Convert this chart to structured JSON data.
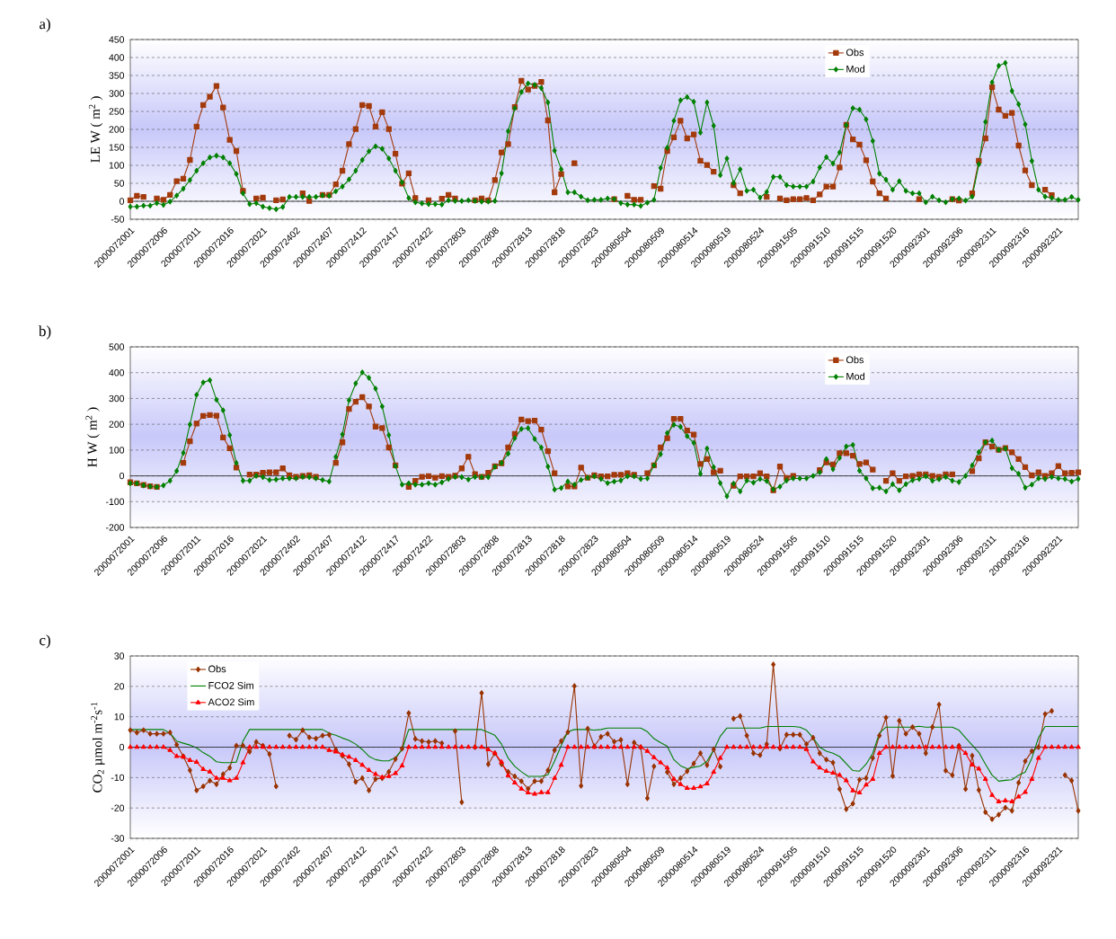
{
  "chart_data": [
    {
      "type": "line",
      "title": "a)",
      "ylabel": "LE  W ( m$^{2}$ )",
      "categories": [
        "2000072001",
        null,
        null,
        null,
        null,
        "2000072006",
        null,
        null,
        null,
        null,
        "2000072011",
        null,
        null,
        null,
        null,
        "2000072016",
        null,
        null,
        null,
        null,
        "2000072021",
        null,
        null,
        null,
        null,
        "2000072402",
        null,
        null,
        null,
        null,
        "2000072407",
        null,
        null,
        null,
        null,
        "2000072412",
        null,
        null,
        null,
        null,
        "2000072417",
        null,
        null,
        null,
        null,
        "2000072422",
        null,
        null,
        null,
        null,
        "2000072803",
        null,
        null,
        null,
        null,
        "2000072808",
        null,
        null,
        null,
        null,
        "2000072813",
        null,
        null,
        null,
        null,
        "2000072818",
        null,
        null,
        null,
        null,
        "2000072823",
        null,
        null,
        null,
        null,
        "2000080504",
        null,
        null,
        null,
        null,
        "2000080509",
        null,
        null,
        null,
        null,
        "2000080514",
        null,
        null,
        null,
        null,
        "2000080519",
        null,
        null,
        null,
        null,
        "2000080524",
        null,
        null,
        null,
        null,
        "2000091505",
        null,
        null,
        null,
        null,
        "2000091510",
        null,
        null,
        null,
        null,
        "2000091515",
        null,
        null,
        null,
        null,
        "2000091520",
        null,
        null,
        null,
        null,
        "2000092301",
        null,
        null,
        null,
        null,
        "2000092306",
        null,
        null,
        null,
        null,
        "2000092311",
        null,
        null,
        null,
        null,
        "2000092316",
        null,
        null,
        null,
        null,
        "2000092321",
        null,
        null,
        null
      ],
      "ylim": [
        -50,
        450
      ],
      "yticks": [
        -50,
        0,
        50,
        100,
        150,
        200,
        250,
        300,
        350,
        400,
        450
      ],
      "grid": "y",
      "legend": "top right",
      "series": [
        {
          "name": "Obs",
          "color": "#a33a0b",
          "marker": "square",
          "values": [
            3,
            15,
            12,
            null,
            8,
            4,
            18,
            56,
            63,
            115,
            208,
            268,
            291,
            321,
            261,
            171,
            140,
            29,
            null,
            8,
            10,
            null,
            3,
            5,
            null,
            null,
            22,
            1,
            null,
            18,
            18,
            47,
            85,
            159,
            201,
            268,
            265,
            208,
            248,
            201,
            132,
            49,
            78,
            9,
            null,
            3,
            null,
            7,
            18,
            8,
            null,
            null,
            3,
            8,
            3,
            59,
            136,
            159,
            262,
            335,
            311,
            321,
            332,
            225,
            25,
            76,
            null,
            106,
            null,
            null,
            null,
            null,
            null,
            6,
            null,
            15,
            4,
            4,
            null,
            42,
            35,
            140,
            178,
            224,
            175,
            186,
            113,
            101,
            82,
            null,
            null,
            45,
            22,
            null,
            null,
            null,
            12,
            null,
            8,
            3,
            6,
            6,
            9,
            3,
            19,
            41,
            41,
            94,
            213,
            172,
            158,
            114,
            55,
            22,
            8,
            null,
            null,
            null,
            null,
            6,
            null,
            null,
            null,
            null,
            6,
            2,
            null,
            22,
            113,
            175,
            318,
            255,
            238,
            246,
            155,
            86,
            45,
            null,
            32,
            17,
            null,
            null,
            null,
            null
          ]
        },
        {
          "name": "Mod",
          "color": "#008000",
          "marker": "diamond",
          "values": [
            -15,
            -15,
            -12,
            -12,
            -5,
            -10,
            -1,
            16,
            35,
            59,
            85,
            106,
            122,
            127,
            122,
            106,
            76,
            22,
            -8,
            -5,
            -15,
            -19,
            -22,
            -16,
            12,
            12,
            12,
            12,
            12,
            16,
            15,
            28,
            41,
            61,
            85,
            115,
            139,
            153,
            146,
            119,
            85,
            53,
            9,
            -3,
            -6,
            -8,
            -8,
            -9,
            3,
            1,
            1,
            3,
            1,
            -1,
            -1,
            1,
            78,
            195,
            259,
            304,
            328,
            324,
            315,
            275,
            141,
            89,
            25,
            25,
            13,
            3,
            4,
            4,
            8,
            6,
            -5,
            -9,
            -9,
            -13,
            -4,
            4,
            93,
            149,
            224,
            281,
            290,
            277,
            191,
            275,
            210,
            73,
            119,
            51,
            89,
            29,
            32,
            10,
            26,
            68,
            68,
            45,
            41,
            41,
            41,
            55,
            94,
            123,
            105,
            136,
            212,
            259,
            255,
            228,
            168,
            77,
            60,
            32,
            56,
            29,
            22,
            22,
            -3,
            13,
            3,
            -3,
            6,
            8,
            2,
            13,
            103,
            221,
            331,
            377,
            385,
            307,
            270,
            214,
            112,
            32,
            13,
            9,
            4,
            4,
            12,
            4
          ]
        }
      ]
    },
    {
      "type": "line",
      "title": "b)",
      "ylabel": "H W ( m$^{2}$ )",
      "categories": [
        "2000072001",
        null,
        null,
        null,
        null,
        "2000072006",
        null,
        null,
        null,
        null,
        "2000072011",
        null,
        null,
        null,
        null,
        "2000072016",
        null,
        null,
        null,
        null,
        "2000072021",
        null,
        null,
        null,
        null,
        "2000072402",
        null,
        null,
        null,
        null,
        "2000072407",
        null,
        null,
        null,
        null,
        "2000072412",
        null,
        null,
        null,
        null,
        "2000072417",
        null,
        null,
        null,
        null,
        "2000072422",
        null,
        null,
        null,
        null,
        "2000072803",
        null,
        null,
        null,
        null,
        "2000072808",
        null,
        null,
        null,
        null,
        "2000072813",
        null,
        null,
        null,
        null,
        "2000072818",
        null,
        null,
        null,
        null,
        "2000072823",
        null,
        null,
        null,
        null,
        "2000080504",
        null,
        null,
        null,
        null,
        "2000080509",
        null,
        null,
        null,
        null,
        "2000080514",
        null,
        null,
        null,
        null,
        "2000080519",
        null,
        null,
        null,
        null,
        "2000080524",
        null,
        null,
        null,
        null,
        "2000091505",
        null,
        null,
        null,
        null,
        "2000091510",
        null,
        null,
        null,
        null,
        "2000091515",
        null,
        null,
        null,
        null,
        "2000091520",
        null,
        null,
        null,
        null,
        "2000092301",
        null,
        null,
        null,
        null,
        "2000092306",
        null,
        null,
        null,
        null,
        "2000092311",
        null,
        null,
        null,
        null,
        "2000092316",
        null,
        null,
        null,
        null,
        "2000092321",
        null,
        null,
        null
      ],
      "ylim": [
        -200,
        500
      ],
      "yticks": [
        -200,
        -100,
        0,
        100,
        200,
        300,
        400,
        500
      ],
      "grid": "y",
      "legend": "top right",
      "series": [
        {
          "name": "Obs",
          "color": "#a33a0b",
          "marker": "square",
          "values": [
            -25,
            -29,
            -35,
            -40,
            -43,
            null,
            null,
            null,
            50,
            134,
            203,
            232,
            236,
            233,
            149,
            107,
            32,
            null,
            5,
            5,
            12,
            14,
            14,
            29,
            2,
            -4,
            0,
            2,
            -4,
            null,
            null,
            50,
            130,
            259,
            287,
            305,
            269,
            191,
            185,
            110,
            41,
            null,
            -43,
            -19,
            -4,
            -1,
            -7,
            -1,
            -4,
            1,
            29,
            74,
            7,
            -4,
            12,
            37,
            49,
            110,
            163,
            218,
            212,
            214,
            179,
            96,
            10,
            null,
            -41,
            -41,
            32,
            -7,
            2,
            -2,
            -2,
            4,
            4,
            10,
            4,
            null,
            10,
            41,
            110,
            146,
            221,
            221,
            176,
            160,
            46,
            65,
            14,
            20,
            null,
            -38,
            -2,
            -2,
            -2,
            10,
            -2,
            -56,
            36,
            -8,
            0,
            null,
            null,
            null,
            22,
            52,
            44,
            88,
            88,
            78,
            46,
            52,
            24,
            null,
            -19,
            10,
            -19,
            -2,
            0,
            6,
            6,
            0,
            -4,
            6,
            6,
            null,
            null,
            18,
            68,
            130,
            114,
            101,
            108,
            91,
            65,
            34,
            2,
            14,
            0,
            10,
            38,
            10,
            12,
            14
          ]
        },
        {
          "name": "Mod",
          "color": "#008000",
          "marker": "diamond",
          "values": [
            -29,
            -29,
            -37,
            -41,
            -43,
            -37,
            -19,
            19,
            89,
            199,
            314,
            362,
            371,
            295,
            254,
            158,
            50,
            -19,
            -19,
            0,
            -5,
            -16,
            -14,
            -10,
            -10,
            -10,
            -4,
            -5,
            -10,
            -16,
            -22,
            74,
            161,
            293,
            358,
            401,
            380,
            338,
            269,
            158,
            38,
            -34,
            -29,
            -34,
            -34,
            -29,
            -34,
            -25,
            -12,
            -4,
            -5,
            -14,
            -4,
            -5,
            -5,
            35,
            50,
            86,
            146,
            182,
            185,
            143,
            110,
            36,
            -53,
            -47,
            -22,
            -34,
            -16,
            -7,
            -2,
            -12,
            -28,
            -22,
            -18,
            -2,
            -2,
            -12,
            -10,
            41,
            84,
            166,
            198,
            190,
            154,
            128,
            8,
            106,
            34,
            -28,
            -79,
            -30,
            -60,
            -18,
            -26,
            -12,
            -20,
            -52,
            -42,
            -18,
            -10,
            -10,
            -10,
            0,
            14,
            65,
            26,
            70,
            114,
            120,
            20,
            -10,
            -48,
            -46,
            -60,
            -32,
            -56,
            -32,
            -17,
            -12,
            -2,
            -19,
            -13,
            -4,
            -19,
            -24,
            0,
            41,
            92,
            130,
            137,
            101,
            106,
            30,
            8,
            -46,
            -34,
            -10,
            -12,
            -4,
            -10,
            -12,
            -22,
            -12
          ]
        }
      ]
    },
    {
      "type": "line",
      "title": "c)",
      "ylabel": "CO$_{2}$ µmol m$^{-2}$s$^{-1}$",
      "categories": [
        "2000072001",
        null,
        null,
        null,
        null,
        "2000072006",
        null,
        null,
        null,
        null,
        "2000072011",
        null,
        null,
        null,
        null,
        "2000072016",
        null,
        null,
        null,
        null,
        "2000072021",
        null,
        null,
        null,
        null,
        "2000072402",
        null,
        null,
        null,
        null,
        "2000072407",
        null,
        null,
        null,
        null,
        "2000072412",
        null,
        null,
        null,
        null,
        "2000072417",
        null,
        null,
        null,
        null,
        "2000072422",
        null,
        null,
        null,
        null,
        "2000072803",
        null,
        null,
        null,
        null,
        "2000072808",
        null,
        null,
        null,
        null,
        "2000072813",
        null,
        null,
        null,
        null,
        "2000072818",
        null,
        null,
        null,
        null,
        "2000072823",
        null,
        null,
        null,
        null,
        "2000080504",
        null,
        null,
        null,
        null,
        "2000080509",
        null,
        null,
        null,
        null,
        "2000080514",
        null,
        null,
        null,
        null,
        "2000080519",
        null,
        null,
        null,
        null,
        "2000080524",
        null,
        null,
        null,
        null,
        "2000091505",
        null,
        null,
        null,
        null,
        "2000091510",
        null,
        null,
        null,
        null,
        "2000091515",
        null,
        null,
        null,
        null,
        "2000091520",
        null,
        null,
        null,
        null,
        "2000092301",
        null,
        null,
        null,
        null,
        "2000092306",
        null,
        null,
        null,
        null,
        "2000092311",
        null,
        null,
        null,
        null,
        "2000092316",
        null,
        null,
        null,
        null,
        "2000092321",
        null,
        null,
        null
      ],
      "ylim": [
        -30,
        30
      ],
      "yticks": [
        -30,
        -20,
        -10,
        0,
        10,
        20,
        30
      ],
      "grid": "y",
      "legend": "top left",
      "series": [
        {
          "name": "Obs",
          "color": "#993300",
          "marker": "diamond",
          "values": [
            5.6,
            4.8,
            5.6,
            4.4,
            4.4,
            4.4,
            4.8,
            0.8,
            -3.0,
            -7.6,
            -14.2,
            -12.9,
            -11.0,
            -12.2,
            -8.9,
            -6.8,
            0.5,
            0.5,
            -1.5,
            1.7,
            0.5,
            -2.3,
            -12.9,
            null,
            3.8,
            2.5,
            5.6,
            3.2,
            2.8,
            3.8,
            4.1,
            -0.8,
            -2.8,
            -5.6,
            -11.4,
            -10.2,
            -14.2,
            -10.5,
            -10.2,
            -8.1,
            -3.9,
            -0.5,
            11.2,
            2.7,
            2.0,
            1.7,
            2.0,
            1.3,
            null,
            5.3,
            -18.1,
            null,
            0.0,
            17.8,
            -5.6,
            -2.0,
            -5.6,
            -8.1,
            -9.6,
            -11.2,
            -13.7,
            -11.2,
            -11.2,
            -7.6,
            -1.0,
            2.0,
            4.9,
            20.1,
            -12.7,
            6.1,
            0.3,
            3.4,
            4.4,
            1.8,
            2.4,
            -12.2,
            1.5,
            0.0,
            -16.8,
            -6.3,
            null,
            -8.2,
            -12.2,
            -10.2,
            -7.9,
            -5.4,
            -2.0,
            -5.9,
            -0.7,
            -6.4,
            null,
            9.4,
            10.2,
            3.8,
            -2.0,
            -2.6,
            1.0,
            27.2,
            -0.5,
            4.1,
            4.1,
            4.1,
            1.0,
            3.1,
            -2.0,
            -4.1,
            -5.1,
            -13.8,
            -20.4,
            -18.6,
            -10.7,
            -10.2,
            -3.6,
            3.8,
            9.7,
            -9.5,
            8.7,
            4.4,
            6.6,
            4.4,
            -2.0,
            6.6,
            14.0,
            -7.7,
            -9.2,
            0.5,
            -13.8,
            -2.8,
            -14.1,
            -21.4,
            -23.7,
            -22.2,
            -19.9,
            -20.9,
            -11.7,
            -4.6,
            -1.3,
            0.0,
            10.9,
            11.9,
            null,
            -9.2,
            -11.0,
            -20.9
          ]
        },
        {
          "name": "FCO2 Sim",
          "color": "#008000",
          "marker": "none",
          "values": [
            5.8,
            5.8,
            5.8,
            5.8,
            5.8,
            5.8,
            4.6,
            2.0,
            1.3,
            0.7,
            -0.2,
            -1.8,
            -3.0,
            -4.8,
            -5.1,
            -5.1,
            -4.9,
            2.0,
            5.8,
            5.8,
            5.8,
            5.8,
            5.8,
            5.8,
            5.8,
            5.8,
            5.8,
            5.8,
            5.8,
            5.8,
            4.6,
            3.9,
            3.0,
            2.2,
            1.0,
            -0.8,
            -3.0,
            -4.1,
            -4.5,
            -4.5,
            -3.4,
            -0.8,
            5.8,
            5.8,
            5.8,
            5.8,
            5.8,
            5.8,
            5.8,
            5.8,
            5.8,
            5.8,
            5.8,
            5.8,
            4.9,
            3.9,
            1.0,
            -3.6,
            -6.3,
            -8.1,
            -9.6,
            -9.6,
            -9.6,
            -9.1,
            -4.6,
            0.5,
            5.1,
            5.8,
            5.8,
            5.8,
            5.6,
            5.8,
            6.3,
            6.3,
            6.3,
            6.3,
            6.3,
            6.3,
            5.1,
            2.8,
            1.5,
            0.3,
            -4.1,
            -6.1,
            -7.1,
            -6.6,
            -6.2,
            -4.6,
            -1.0,
            3.6,
            6.3,
            6.3,
            6.3,
            6.3,
            6.3,
            6.3,
            6.8,
            6.8,
            6.8,
            6.8,
            6.8,
            6.6,
            5.6,
            3.1,
            0.0,
            -1.3,
            -2.0,
            -3.1,
            -5.4,
            -7.7,
            -7.9,
            -5.6,
            -2.0,
            4.6,
            6.6,
            6.6,
            6.6,
            6.6,
            6.6,
            6.9,
            6.6,
            6.6,
            6.6,
            6.6,
            6.6,
            5.6,
            3.1,
            0.7,
            -1.7,
            -5.6,
            -9.2,
            -11.2,
            -10.9,
            -10.7,
            -9.2,
            -8.2,
            -3.6,
            3.1,
            6.8,
            6.8,
            6.8,
            6.8,
            6.8,
            6.8
          ]
        },
        {
          "name": "ACO2 Sim",
          "color": "#ff0000",
          "marker": "triangle",
          "values": [
            0,
            0,
            0,
            0,
            0,
            0,
            -1.0,
            -3.0,
            -3.2,
            -4.3,
            -4.9,
            -7.3,
            -8.1,
            -10.2,
            -10.2,
            -11.0,
            -10.2,
            -5.1,
            0,
            0,
            0,
            0,
            0,
            0,
            0,
            0,
            0,
            0,
            0,
            0,
            -1.0,
            -1.5,
            -2.5,
            -3.2,
            -4.3,
            -5.9,
            -7.6,
            -8.9,
            -9.9,
            -9.6,
            -8.6,
            -6.1,
            0,
            0,
            0,
            0,
            0,
            0,
            0,
            0,
            0,
            0,
            0,
            0,
            -0.8,
            -2.0,
            -4.9,
            -9.3,
            -11.7,
            -13.7,
            -15.0,
            -15.4,
            -14.9,
            -14.9,
            -10.2,
            -5.9,
            0,
            0,
            0,
            0,
            0,
            0,
            0,
            0,
            0,
            0,
            0,
            0,
            -1.3,
            -3.4,
            -5.1,
            -6.8,
            -10.5,
            -12.2,
            -13.5,
            -13.5,
            -13.0,
            -12.0,
            -8.2,
            -3.6,
            0,
            0,
            0,
            0,
            0,
            0,
            0,
            0,
            0,
            0,
            0,
            0,
            -0.7,
            -4.8,
            -6.8,
            -7.9,
            -8.5,
            -9.2,
            -11.0,
            -14.3,
            -15.0,
            -12.4,
            -10.5,
            -2.0,
            0,
            0,
            0,
            0,
            0,
            0,
            0,
            0,
            0,
            0,
            0,
            0,
            -2.0,
            -5.8,
            -7.1,
            -10.5,
            -15.8,
            -17.9,
            -17.6,
            -17.9,
            -16.3,
            -14.8,
            -10.5,
            -3.6,
            0,
            0,
            0,
            0,
            0,
            0
          ]
        }
      ]
    }
  ]
}
